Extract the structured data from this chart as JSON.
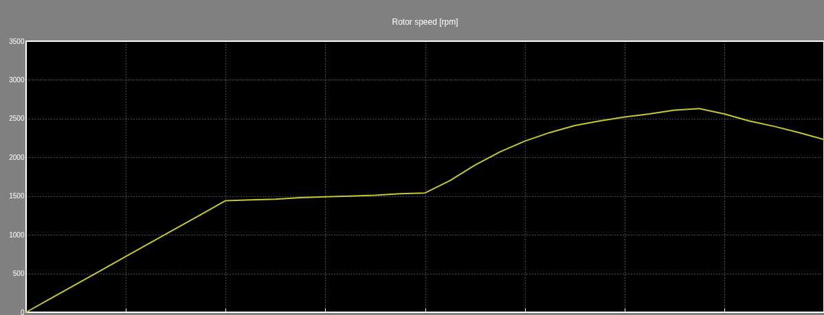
{
  "chart_data": {
    "type": "line",
    "title": "Rotor speed [rpm]",
    "categories": [
      null,
      null,
      null,
      null,
      null,
      null,
      null,
      null,
      null,
      null,
      null,
      null,
      null,
      null,
      null,
      null,
      null,
      null,
      null,
      null,
      null,
      null,
      null,
      null,
      null,
      null,
      null,
      null,
      null,
      null,
      null,
      null,
      null
    ],
    "series": [
      {
        "color": "#c8c832",
        "values": [
          0,
          180,
          360,
          540,
          720,
          900,
          1080,
          1260,
          1440,
          1450,
          1460,
          1480,
          1490,
          1500,
          1510,
          1530,
          1540,
          1700,
          1900,
          2070,
          2210,
          2320,
          2410,
          2470,
          2520,
          2560,
          2610,
          2630,
          2560,
          2470,
          2400,
          2320,
          2230
        ]
      }
    ],
    "ylim": [
      0,
      3500
    ],
    "yticks": [
      0,
      500,
      1000,
      1500,
      2000,
      2500,
      3000,
      3500
    ],
    "grid": true,
    "tick_labels": "y",
    "line_style": "solid"
  }
}
